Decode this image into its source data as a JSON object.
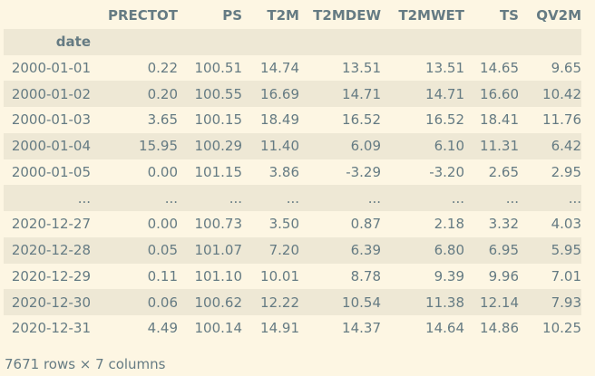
{
  "table": {
    "columns": [
      "PRECTOT",
      "PS",
      "T2M",
      "T2MDEW",
      "T2MWET",
      "TS",
      "QV2M"
    ],
    "index_name": "date",
    "rows": [
      {
        "index": "2000-01-01",
        "values": [
          "0.22",
          "100.51",
          "14.74",
          "13.51",
          "13.51",
          "14.65",
          "9.65"
        ]
      },
      {
        "index": "2000-01-02",
        "values": [
          "0.20",
          "100.55",
          "16.69",
          "14.71",
          "14.71",
          "16.60",
          "10.42"
        ]
      },
      {
        "index": "2000-01-03",
        "values": [
          "3.65",
          "100.15",
          "18.49",
          "16.52",
          "16.52",
          "18.41",
          "11.76"
        ]
      },
      {
        "index": "2000-01-04",
        "values": [
          "15.95",
          "100.29",
          "11.40",
          "6.09",
          "6.10",
          "11.31",
          "6.42"
        ]
      },
      {
        "index": "2000-01-05",
        "values": [
          "0.00",
          "101.15",
          "3.86",
          "-3.29",
          "-3.20",
          "2.65",
          "2.95"
        ]
      },
      {
        "index": "...",
        "values": [
          "...",
          "...",
          "...",
          "...",
          "...",
          "...",
          "..."
        ]
      },
      {
        "index": "2020-12-27",
        "values": [
          "0.00",
          "100.73",
          "3.50",
          "0.87",
          "2.18",
          "3.32",
          "4.03"
        ]
      },
      {
        "index": "2020-12-28",
        "values": [
          "0.05",
          "101.07",
          "7.20",
          "6.39",
          "6.80",
          "6.95",
          "5.95"
        ]
      },
      {
        "index": "2020-12-29",
        "values": [
          "0.11",
          "101.10",
          "10.01",
          "8.78",
          "9.39",
          "9.96",
          "7.01"
        ]
      },
      {
        "index": "2020-12-30",
        "values": [
          "0.06",
          "100.62",
          "12.22",
          "10.54",
          "11.38",
          "12.14",
          "7.93"
        ]
      },
      {
        "index": "2020-12-31",
        "values": [
          "4.49",
          "100.14",
          "14.91",
          "14.37",
          "14.64",
          "14.86",
          "10.25"
        ]
      }
    ]
  },
  "footer": "7671 rows × 7 columns",
  "colors": {
    "background": "#fdf6e3",
    "stripe": "#eee8d5",
    "text": "#657b83"
  }
}
